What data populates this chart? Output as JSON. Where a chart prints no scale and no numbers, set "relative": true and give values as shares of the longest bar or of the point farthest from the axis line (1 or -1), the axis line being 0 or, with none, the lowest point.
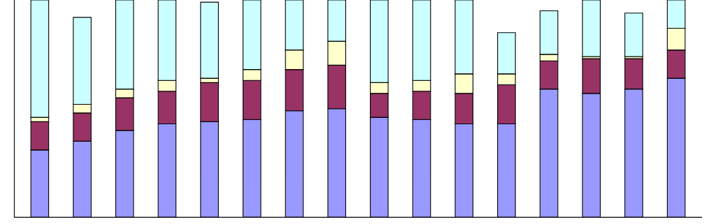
{
  "chart_data": {
    "type": "bar",
    "relative": true,
    "stacked": true,
    "categories": [
      null,
      null,
      null,
      null,
      null,
      null,
      null,
      null,
      null,
      null,
      null,
      null,
      null,
      null,
      null,
      null
    ],
    "series": [
      {
        "color": "#9999ff",
        "values": [
          0.31,
          0.35,
          0.4,
          0.43,
          0.44,
          0.45,
          0.49,
          0.5,
          0.46,
          0.45,
          0.43,
          0.43,
          0.59,
          0.57,
          0.59,
          0.64
        ]
      },
      {
        "color": "#993366",
        "values": [
          0.13,
          0.13,
          0.15,
          0.15,
          0.18,
          0.18,
          0.19,
          0.2,
          0.11,
          0.13,
          0.14,
          0.18,
          0.13,
          0.16,
          0.14,
          0.13
        ]
      },
      {
        "color": "#ffffcc",
        "values": [
          0.02,
          0.04,
          0.04,
          0.05,
          0.02,
          0.05,
          0.09,
          0.11,
          0.05,
          0.05,
          0.09,
          0.05,
          0.03,
          0.01,
          0.01,
          0.1
        ]
      },
      {
        "color": "#ccffff",
        "values": [
          0.54,
          0.4,
          0.41,
          0.37,
          0.35,
          0.32,
          0.23,
          0.19,
          0.38,
          0.37,
          0.34,
          0.19,
          0.2,
          0.26,
          0.2,
          0.13
        ]
      }
    ]
  }
}
